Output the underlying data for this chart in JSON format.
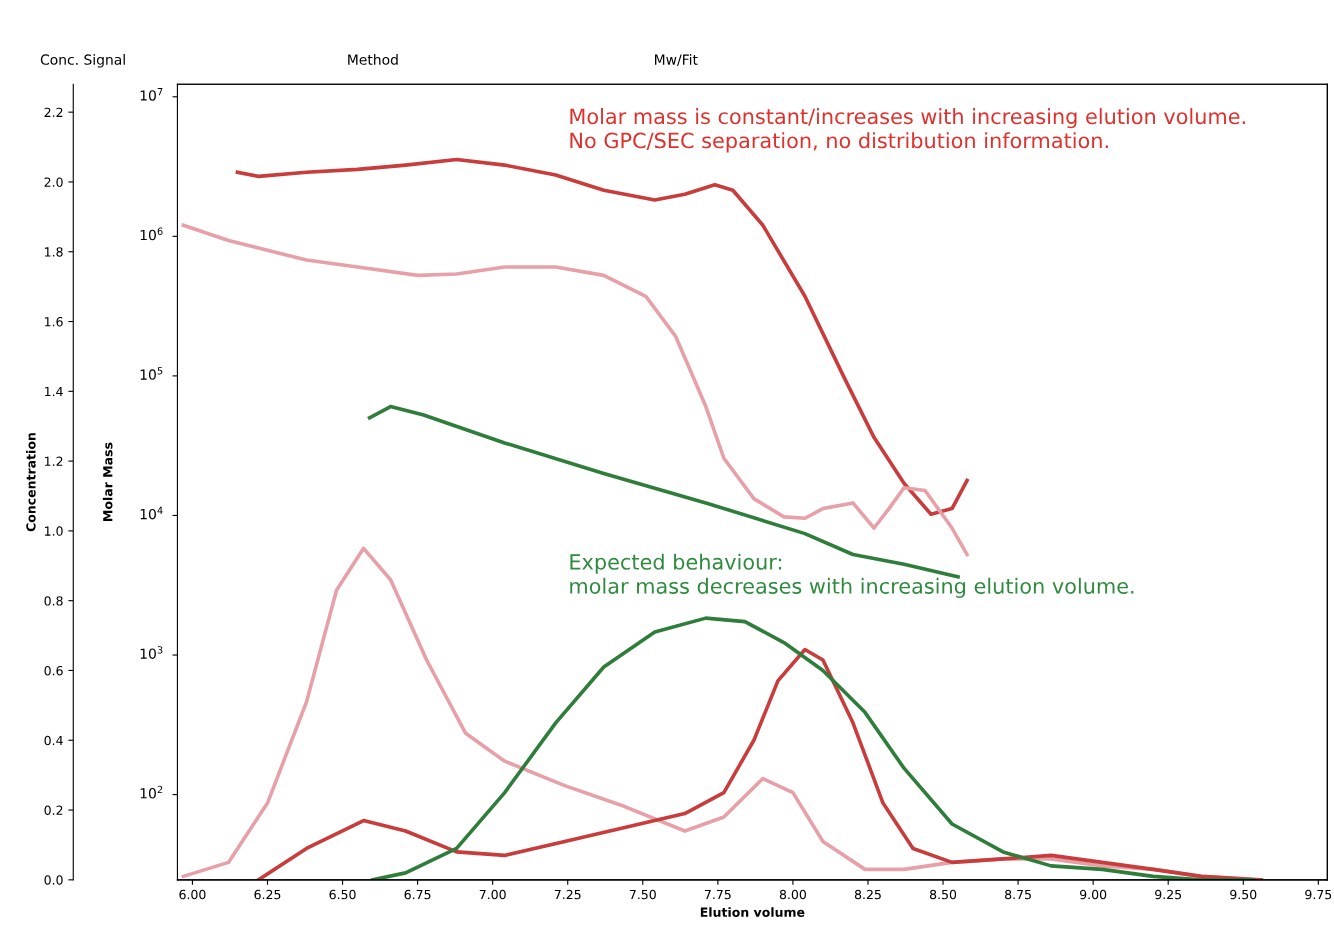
{
  "chart_data": {
    "type": "line",
    "xlabel": "Elution volume",
    "ylabel": "Concentration",
    "y2label": "Molar Mass",
    "xlim": [
      5.95,
      9.78
    ],
    "xticks": [
      {
        "value": 6.0,
        "label": "6.00"
      },
      {
        "value": 6.25,
        "label": "6.25"
      },
      {
        "value": 6.5,
        "label": "6.50"
      },
      {
        "value": 6.75,
        "label": "6.75"
      },
      {
        "value": 7.0,
        "label": "7.00"
      },
      {
        "value": 7.25,
        "label": "7.25"
      },
      {
        "value": 7.5,
        "label": "7.50"
      },
      {
        "value": 7.75,
        "label": "7.75"
      },
      {
        "value": 8.0,
        "label": "8.00"
      },
      {
        "value": 8.25,
        "label": "8.25"
      },
      {
        "value": 8.5,
        "label": "8.50"
      },
      {
        "value": 8.75,
        "label": "8.75"
      },
      {
        "value": 9.0,
        "label": "9.00"
      },
      {
        "value": 9.25,
        "label": "9.25"
      },
      {
        "value": 9.5,
        "label": "9.50"
      },
      {
        "value": 9.75,
        "label": "9.75"
      }
    ],
    "ylim": [
      0,
      2.28
    ],
    "yticks": [
      {
        "value": 0,
        "label": "0.0"
      },
      0.2,
      0.4,
      0.6,
      0.8,
      {
        "value": 1.0,
        "label": "1.0"
      },
      1.2,
      1.4,
      1.6,
      1.8,
      {
        "value": 2.0,
        "label": "2.0"
      },
      2.2
    ],
    "log": "y2",
    "y2lim": [
      24.5,
      12300000
    ],
    "y2ticks": [
      {
        "value": 100,
        "label": "10$^{2}$"
      },
      {
        "value": 1000,
        "label": "10$^{3}$"
      },
      {
        "value": 10000,
        "label": "10$^{4}$"
      },
      {
        "value": 100000,
        "label": "10$^{5}$"
      },
      {
        "value": 1000000,
        "label": "10$^{6}$"
      },
      {
        "value": 10000000,
        "label": "10$^{7}$"
      }
    ],
    "grid": false,
    "legend": false,
    "series": [
      {
        "color": "#e8a0a8",
        "x": [
          5.97,
          6.12,
          6.25,
          6.38,
          6.48,
          6.57,
          6.66,
          6.78,
          6.91,
          7.04,
          7.24,
          7.44,
          7.64,
          7.77,
          7.9,
          8.0,
          8.1,
          8.24,
          8.37,
          8.53,
          8.7,
          8.86,
          9.03,
          9.2,
          9.36,
          9.56
        ],
        "values": [
          0.01,
          0.05,
          0.22,
          0.51,
          0.83,
          0.95,
          0.86,
          0.63,
          0.42,
          0.34,
          0.27,
          0.21,
          0.14,
          0.18,
          0.29,
          0.25,
          0.11,
          0.03,
          0.03,
          0.05,
          0.06,
          0.06,
          0.04,
          0.03,
          0.01,
          0.0
        ]
      },
      {
        "color": "#c83c3c",
        "x": [
          6.22,
          6.38,
          6.57,
          6.71,
          6.88,
          7.04,
          7.24,
          7.44,
          7.64,
          7.77,
          7.87,
          7.95,
          8.04,
          8.1,
          8.2,
          8.3,
          8.4,
          8.53,
          8.7,
          8.86,
          9.03,
          9.2,
          9.36,
          9.56
        ],
        "values": [
          0.0,
          0.09,
          0.17,
          0.14,
          0.08,
          0.07,
          0.11,
          0.15,
          0.19,
          0.25,
          0.4,
          0.57,
          0.66,
          0.63,
          0.45,
          0.22,
          0.09,
          0.05,
          0.06,
          0.07,
          0.05,
          0.03,
          0.01,
          0.0
        ]
      },
      {
        "color": "#2e7d3a",
        "x": [
          6.6,
          6.71,
          6.88,
          7.04,
          7.21,
          7.37,
          7.54,
          7.71,
          7.84,
          7.97,
          8.1,
          8.24,
          8.37,
          8.53,
          8.7,
          8.86,
          9.03,
          9.2,
          9.36,
          9.53
        ],
        "values": [
          0.0,
          0.02,
          0.09,
          0.25,
          0.45,
          0.61,
          0.71,
          0.75,
          0.74,
          0.68,
          0.6,
          0.48,
          0.32,
          0.16,
          0.08,
          0.04,
          0.03,
          0.01,
          0.0,
          0.0
        ]
      },
      {
        "color": "#c83c3c",
        "axis": "y2",
        "x": [
          6.15,
          6.22,
          6.38,
          6.55,
          6.71,
          6.88,
          7.04,
          7.21,
          7.37,
          7.54,
          7.64,
          7.74,
          7.8,
          7.9,
          8.04,
          8.17,
          8.27,
          8.37,
          8.46,
          8.53,
          8.58
        ],
        "values": [
          2880000,
          2690000,
          2880000,
          3020000,
          3240000,
          3550000,
          3240000,
          2750000,
          2140000,
          1820000,
          2000000,
          2340000,
          2140000,
          1200000,
          372000,
          98000,
          36300,
          17000,
          10200,
          11200,
          17800
        ]
      },
      {
        "color": "#e8a0a8",
        "axis": "y2",
        "x": [
          5.97,
          6.12,
          6.38,
          6.55,
          6.75,
          6.88,
          7.04,
          7.21,
          7.37,
          7.51,
          7.61,
          7.71,
          7.77,
          7.87,
          7.97,
          8.04,
          8.1,
          8.2,
          8.27,
          8.32,
          8.37,
          8.44,
          8.53,
          8.58
        ],
        "values": [
          1200000,
          933000,
          676000,
          603000,
          525000,
          537000,
          603000,
          603000,
          525000,
          372000,
          191000,
          60300,
          25700,
          13200,
          9770,
          9550,
          11200,
          12300,
          8130,
          11200,
          15800,
          15100,
          8130,
          5250
        ]
      },
      {
        "color": "#2e7d3a",
        "axis": "y2",
        "x": [
          6.59,
          6.66,
          6.77,
          7.04,
          7.37,
          7.71,
          8.04,
          8.2,
          8.37,
          8.55
        ],
        "values": [
          50100,
          60300,
          52500,
          33100,
          20000,
          12300,
          7410,
          5250,
          4470,
          3630
        ]
      }
    ],
    "annotations": [
      {
        "text": "Molar mass is constant/increases with increasing elution volume.\nNo GPC/SEC separation, no distribution information."
      },
      {
        "text": "Expected behaviour:\nmolar mass decreases with increasing elution volume."
      },
      "Conc. Signal",
      "Method",
      "Mw/Fit"
    ]
  }
}
